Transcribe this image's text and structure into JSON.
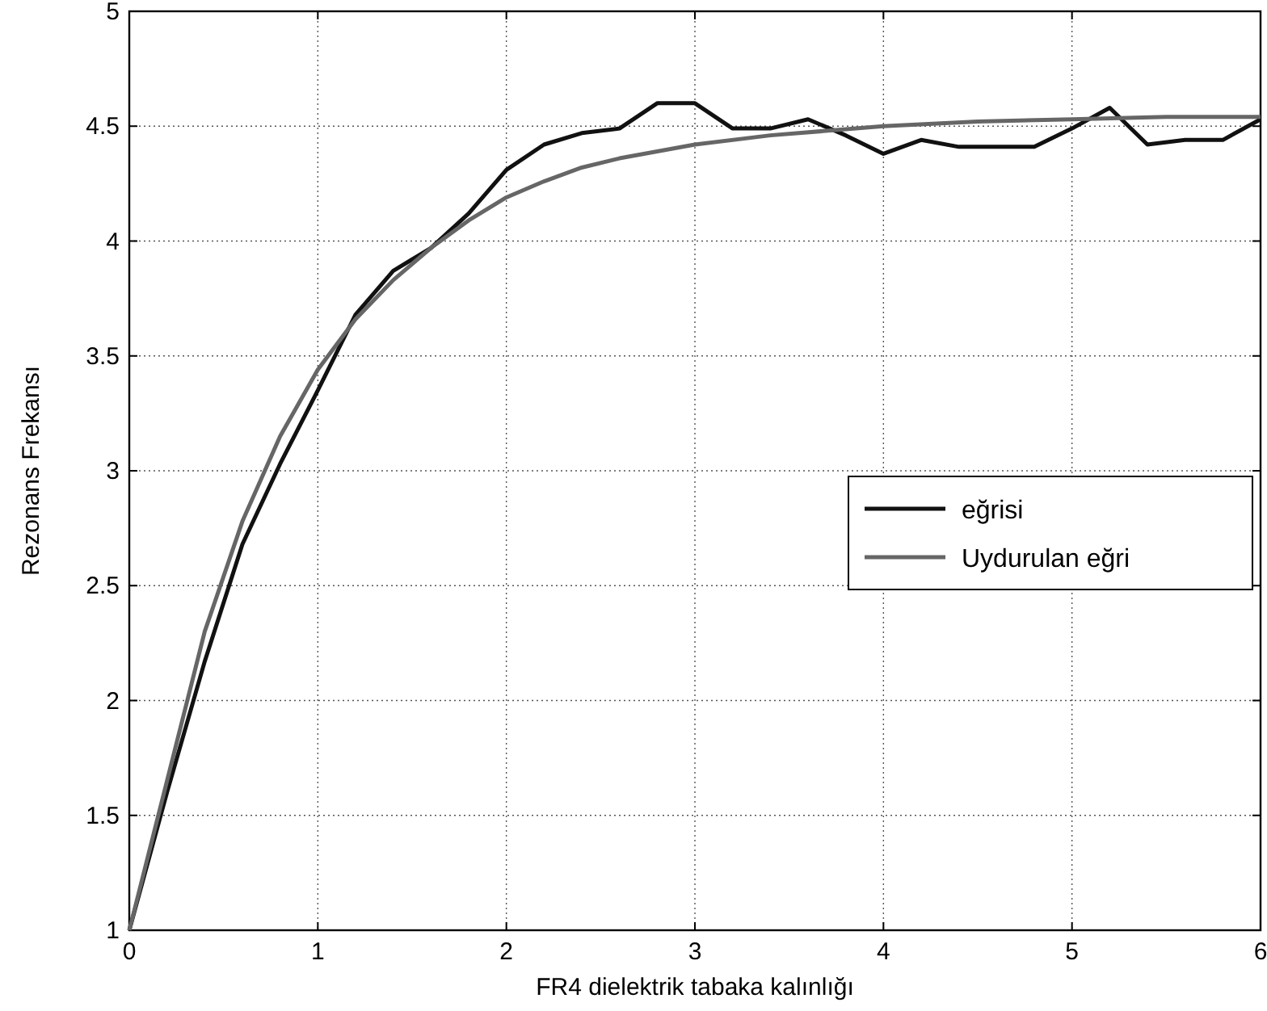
{
  "chart_data": {
    "type": "line",
    "xlabel": "FR4 dielektrik tabaka kalınlığı",
    "ylabel": "Rezonans Frekansı",
    "xlim": [
      0,
      6
    ],
    "xticks": [
      0,
      1,
      2,
      3,
      4,
      5,
      6
    ],
    "ylim": [
      1,
      5
    ],
    "yticks": [
      1,
      1.5,
      2,
      2.5,
      3,
      3.5,
      4,
      4.5,
      5
    ],
    "grid": true,
    "legend": "right",
    "line_style": "solid",
    "series": [
      {
        "name": "eğrisi",
        "color": "#111111",
        "x": [
          0,
          0.2,
          0.4,
          0.6,
          0.8,
          1,
          1.2,
          1.4,
          1.6,
          1.8,
          2,
          2.2,
          2.4,
          2.6,
          2.8,
          3,
          3.2,
          3.4,
          3.6,
          3.8,
          4,
          4.2,
          4.4,
          4.6,
          4.8,
          5,
          5.2,
          5.4,
          5.6,
          5.8,
          6
        ],
        "values": [
          1,
          1.6,
          2.17,
          2.68,
          3.03,
          3.35,
          3.68,
          3.87,
          3.97,
          4.12,
          4.31,
          4.42,
          4.47,
          4.49,
          4.6,
          4.6,
          4.49,
          4.49,
          4.53,
          4.46,
          4.38,
          4.44,
          4.41,
          4.41,
          4.41,
          4.49,
          4.58,
          4.42,
          4.44,
          4.44,
          4.53
        ]
      },
      {
        "name": "Uydurulan eğri",
        "color": "#666666",
        "x": [
          0,
          0.2,
          0.4,
          0.6,
          0.8,
          1,
          1.2,
          1.4,
          1.6,
          1.8,
          2,
          2.2,
          2.4,
          2.6,
          2.8,
          3,
          3.4,
          4,
          4.5,
          5,
          5.5,
          6
        ],
        "values": [
          1,
          1.65,
          2.3,
          2.78,
          3.15,
          3.44,
          3.66,
          3.83,
          3.97,
          4.09,
          4.19,
          4.26,
          4.32,
          4.36,
          4.39,
          4.42,
          4.46,
          4.5,
          4.52,
          4.53,
          4.54,
          4.54
        ]
      }
    ]
  }
}
